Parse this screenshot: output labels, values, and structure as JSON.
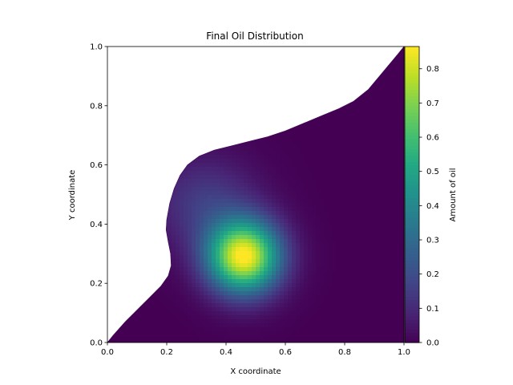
{
  "chart_data": {
    "type": "heatmap",
    "title": "Final Oil Distribution",
    "xlabel": "X coordinate",
    "ylabel": "Y coordinate",
    "xlim": [
      0.0,
      1.0
    ],
    "ylim": [
      0.0,
      1.0
    ],
    "x_ticks": [
      "0.0",
      "0.2",
      "0.4",
      "0.6",
      "0.8",
      "1.0"
    ],
    "y_ticks": [
      "0.0",
      "0.2",
      "0.4",
      "0.6",
      "0.8",
      "1.0"
    ],
    "x_tick_values": [
      0.0,
      0.2,
      0.4,
      0.6,
      0.8,
      1.0
    ],
    "y_tick_values": [
      0.0,
      0.2,
      0.4,
      0.6,
      0.8,
      1.0
    ],
    "colormap": "viridis",
    "grid": false,
    "colorbar": {
      "label": "Amount of oil",
      "range": [
        0.0,
        0.865
      ],
      "ticks": [
        "0.0",
        "0.1",
        "0.2",
        "0.3",
        "0.4",
        "0.5",
        "0.6",
        "0.7",
        "0.8"
      ],
      "tick_values": [
        0.0,
        0.1,
        0.2,
        0.3,
        0.4,
        0.5,
        0.6,
        0.7,
        0.8
      ]
    },
    "domain_boundary": [
      [
        0.0,
        0.0
      ],
      [
        1.0,
        0.0
      ],
      [
        1.0,
        1.0
      ],
      [
        0.98,
        0.975
      ],
      [
        0.93,
        0.915
      ],
      [
        0.88,
        0.855
      ],
      [
        0.83,
        0.815
      ],
      [
        0.78,
        0.79
      ],
      [
        0.72,
        0.765
      ],
      [
        0.66,
        0.74
      ],
      [
        0.6,
        0.715
      ],
      [
        0.54,
        0.695
      ],
      [
        0.48,
        0.68
      ],
      [
        0.42,
        0.665
      ],
      [
        0.36,
        0.65
      ],
      [
        0.31,
        0.63
      ],
      [
        0.27,
        0.6
      ],
      [
        0.245,
        0.565
      ],
      [
        0.225,
        0.52
      ],
      [
        0.21,
        0.47
      ],
      [
        0.2,
        0.415
      ],
      [
        0.198,
        0.38
      ],
      [
        0.205,
        0.34
      ],
      [
        0.213,
        0.3
      ],
      [
        0.215,
        0.26
      ],
      [
        0.205,
        0.225
      ],
      [
        0.18,
        0.19
      ],
      [
        0.14,
        0.15
      ],
      [
        0.1,
        0.11
      ],
      [
        0.06,
        0.07
      ],
      [
        0.02,
        0.025
      ]
    ],
    "plume": [
      {
        "center": [
          0.46,
          0.29
        ],
        "sigma": [
          0.085,
          0.085
        ],
        "peak": 0.865
      },
      {
        "center": [
          0.33,
          0.47
        ],
        "sigma": [
          0.12,
          0.11
        ],
        "peak": 0.15
      }
    ],
    "background_value": 0.0
  }
}
